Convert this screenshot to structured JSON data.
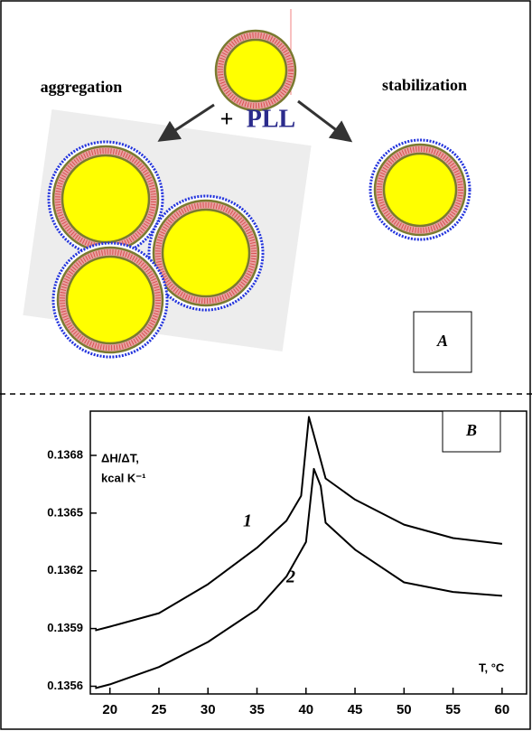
{
  "panel_a": {
    "left_label": "aggregation",
    "right_label": "stabilization",
    "plus": "+",
    "polymer": "PLL",
    "panel_label": "A"
  },
  "chart_data": {
    "type": "line",
    "panel_label": "B",
    "y_label": [
      "ΔH/ΔT,",
      "kcal K⁻¹"
    ],
    "x_label": "T, °C",
    "xlim": [
      18,
      62.5
    ],
    "xticks": [
      20,
      25,
      30,
      35,
      40,
      45,
      50,
      55,
      60
    ],
    "ylim": [
      0.13556,
      0.13703
    ],
    "yticks": [
      0.1356,
      0.1359,
      0.1362,
      0.1365,
      0.1368
    ],
    "series": [
      {
        "name": "1",
        "color": "#000000",
        "x": [
          18.5,
          20,
          25,
          30,
          35,
          38,
          39.5,
          40.3,
          41,
          42,
          45,
          50,
          55,
          60
        ],
        "values": [
          0.13589,
          0.13591,
          0.13598,
          0.13613,
          0.13632,
          0.13646,
          0.13659,
          0.137,
          0.13687,
          0.13668,
          0.13657,
          0.13644,
          0.13637,
          0.13634
        ]
      },
      {
        "name": "2",
        "color": "#000000",
        "x": [
          18.5,
          20,
          25,
          30,
          35,
          38,
          40,
          40.8,
          41.5,
          42,
          45,
          50,
          55,
          60
        ],
        "values": [
          0.13559,
          0.13561,
          0.1357,
          0.13583,
          0.136,
          0.13617,
          0.13635,
          0.13673,
          0.13664,
          0.13645,
          0.13631,
          0.13614,
          0.13609,
          0.13607
        ]
      }
    ]
  }
}
